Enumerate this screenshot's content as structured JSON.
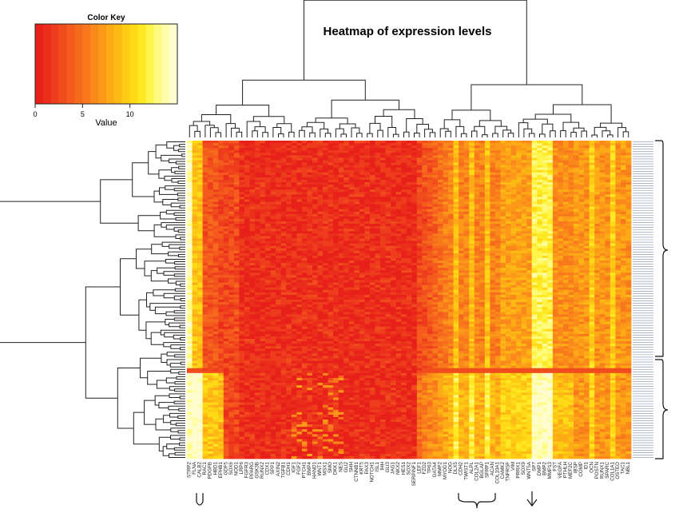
{
  "chart_data": {
    "type": "heatmap",
    "title": "Heatmap of expression levels",
    "color_key": {
      "title": "Color Key",
      "xlabel": "Value",
      "ticks": [
        0,
        5,
        10
      ],
      "range": [
        0,
        15
      ],
      "colors": [
        "#e8201a",
        "#eb2e1b",
        "#ee3d1c",
        "#f14c1d",
        "#f45b1d",
        "#f66a1d",
        "#f8791c",
        "#fa891b",
        "#fc9919",
        "#fdaa17",
        "#fdba15",
        "#fdca14",
        "#fedb16",
        "#fee924",
        "#fff44a",
        "#fffb80",
        "#fffcaa",
        "#fffdd0"
      ]
    },
    "columns": [
      "STRP2",
      "FLNA",
      "CALB2",
      "RAC1",
      "PDGFB",
      "HBD1",
      "EPHB1",
      "GDF5",
      "SOX6",
      "NOD1",
      "LRP6",
      "FGFR3",
      "PPARG",
      "GSK3B",
      "RUNX2",
      "CDX1",
      "SPP1",
      "AXIN2",
      "TGFB1",
      "CDH1",
      "IGF1",
      "FGF2",
      "PTCH1",
      "BMP4",
      "HAND1",
      "WNT1",
      "MSX1",
      "SMO",
      "DKK1",
      "NES",
      "GLI2",
      "SHH",
      "CTNNB1",
      "KRT5",
      "PAX3",
      "NOTCH1",
      "ISL1",
      "IHH",
      "GLI3",
      "JAG1",
      "NKX2",
      "HES1",
      "SOX2",
      "SERPINF1",
      "LEF1",
      "FZD2",
      "TP63",
      "GATA4",
      "MMP2",
      "MYOD1",
      "NOG",
      "DLX5",
      "CDH2",
      "TWIST1",
      "ALPL",
      "COL2A1",
      "BGLAP",
      "SFRP1",
      "ACAN",
      "COL10A1",
      "CAMK2",
      "TNFRSF",
      "VIM",
      "PRRX1",
      "SOX9",
      "WNT5A",
      "SP7",
      "DMP1",
      "BMP2",
      "MMP13",
      "FST",
      "VEGFA",
      "PTHLH",
      "MEF2C",
      "IBSP",
      "COMP",
      "ID1",
      "OCN",
      "POSTN",
      "RUNX1",
      "SPARC",
      "COL1A1",
      "OSTEO",
      "TAC1",
      "NBL1"
    ],
    "rows_count": 130,
    "annotations": {
      "column_brackets": 2,
      "arrow": "down",
      "row_brackets": 2
    }
  }
}
